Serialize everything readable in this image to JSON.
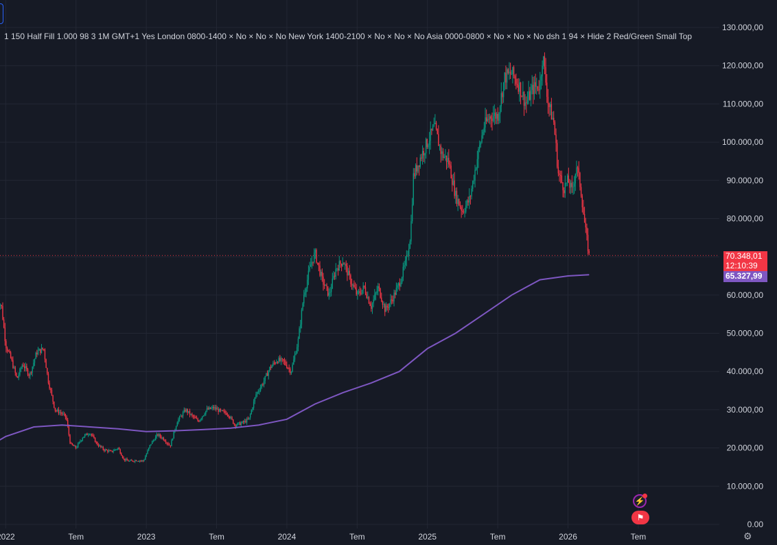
{
  "indicator_legend": "1 150 Half Fill 1.000 98 3 1M GMT+1 Yes London 0800-1400 × No × No × No New York 1400-2100 × No × No × No Asia 0000-0800 × No × No × No dsh 1 94 × Hide 2 Red/Green Small Top",
  "price_tags": {
    "current_price": "70.348,01",
    "countdown": "12:10:39",
    "ma_value": "65.327,99"
  },
  "icons": {
    "alert": "lightning-icon",
    "event": "us-flag-icon",
    "settings": "gear-icon"
  },
  "colors": {
    "background": "#161a25",
    "up_candle": "#089981",
    "down_candle": "#f23645",
    "ma_line": "#7e57c2",
    "grid": "#232734",
    "axis_text": "#d1d4dc"
  },
  "chart_data": {
    "type": "candlestick",
    "x_axis_labels": [
      "2022",
      "Tem",
      "2023",
      "Tem",
      "2024",
      "Tem",
      "2025",
      "Tem",
      "2026",
      "Tem"
    ],
    "y_axis_labels": [
      "130.000,00",
      "120.000,00",
      "110.000,00",
      "100.000,00",
      "90.000,00",
      "80.000,00",
      "70.000,00",
      "60.000,00",
      "50.000,00",
      "40.000,00",
      "30.000,00",
      "20.000,00",
      "10.000,00",
      "0.00"
    ],
    "ylim": [
      0,
      130000
    ],
    "xlim": [
      2021.93,
      2026.93
    ],
    "grid": true,
    "current_price": 70348.01,
    "price_path": [
      [
        2021.93,
        60000
      ],
      [
        2021.97,
        57000
      ],
      [
        2022.0,
        47000
      ],
      [
        2022.04,
        43000
      ],
      [
        2022.08,
        38000
      ],
      [
        2022.12,
        42000
      ],
      [
        2022.17,
        39000
      ],
      [
        2022.22,
        45000
      ],
      [
        2022.27,
        46000
      ],
      [
        2022.3,
        38000
      ],
      [
        2022.35,
        30000
      ],
      [
        2022.4,
        29000
      ],
      [
        2022.43,
        28000
      ],
      [
        2022.46,
        21000
      ],
      [
        2022.5,
        20000
      ],
      [
        2022.55,
        23000
      ],
      [
        2022.6,
        24000
      ],
      [
        2022.65,
        21000
      ],
      [
        2022.7,
        19500
      ],
      [
        2022.75,
        19000
      ],
      [
        2022.8,
        20000
      ],
      [
        2022.84,
        17000
      ],
      [
        2022.88,
        16500
      ],
      [
        2022.93,
        16800
      ],
      [
        2022.98,
        16600
      ],
      [
        2023.03,
        21000
      ],
      [
        2023.08,
        23500
      ],
      [
        2023.12,
        22500
      ],
      [
        2023.17,
        20500
      ],
      [
        2023.22,
        27000
      ],
      [
        2023.28,
        30000
      ],
      [
        2023.32,
        28500
      ],
      [
        2023.37,
        27000
      ],
      [
        2023.43,
        30000
      ],
      [
        2023.48,
        30500
      ],
      [
        2023.53,
        29500
      ],
      [
        2023.58,
        29000
      ],
      [
        2023.63,
        26000
      ],
      [
        2023.68,
        26500
      ],
      [
        2023.73,
        27500
      ],
      [
        2023.78,
        34000
      ],
      [
        2023.83,
        37000
      ],
      [
        2023.88,
        41000
      ],
      [
        2023.93,
        43000
      ],
      [
        2023.98,
        42500
      ],
      [
        2024.03,
        40000
      ],
      [
        2024.08,
        48000
      ],
      [
        2024.12,
        60000
      ],
      [
        2024.17,
        68000
      ],
      [
        2024.2,
        71000
      ],
      [
        2024.25,
        64000
      ],
      [
        2024.3,
        60000
      ],
      [
        2024.35,
        67000
      ],
      [
        2024.4,
        69000
      ],
      [
        2024.45,
        64000
      ],
      [
        2024.5,
        60000
      ],
      [
        2024.55,
        62000
      ],
      [
        2024.6,
        57000
      ],
      [
        2024.65,
        62000
      ],
      [
        2024.7,
        56000
      ],
      [
        2024.75,
        59000
      ],
      [
        2024.8,
        63000
      ],
      [
        2024.85,
        69000
      ],
      [
        2024.88,
        76000
      ],
      [
        2024.9,
        91000
      ],
      [
        2024.95,
        96000
      ],
      [
        2025.0,
        100000
      ],
      [
        2025.05,
        104000
      ],
      [
        2025.1,
        97000
      ],
      [
        2025.15,
        95000
      ],
      [
        2025.2,
        86000
      ],
      [
        2025.25,
        82000
      ],
      [
        2025.3,
        85000
      ],
      [
        2025.35,
        95000
      ],
      [
        2025.4,
        104000
      ],
      [
        2025.45,
        107000
      ],
      [
        2025.5,
        107000
      ],
      [
        2025.55,
        117000
      ],
      [
        2025.6,
        118000
      ],
      [
        2025.65,
        115000
      ],
      [
        2025.7,
        110000
      ],
      [
        2025.75,
        114000
      ],
      [
        2025.8,
        115000
      ],
      [
        2025.82,
        123000
      ],
      [
        2025.86,
        110000
      ],
      [
        2025.9,
        105000
      ],
      [
        2025.93,
        92000
      ],
      [
        2025.97,
        88000
      ],
      [
        2026.0,
        90000
      ],
      [
        2026.03,
        87000
      ],
      [
        2026.06,
        94000
      ],
      [
        2026.09,
        88000
      ],
      [
        2026.12,
        78000
      ],
      [
        2026.15,
        70348
      ]
    ],
    "ma_path": [
      [
        2021.93,
        21500
      ],
      [
        2022.0,
        23000
      ],
      [
        2022.2,
        25500
      ],
      [
        2022.4,
        26000
      ],
      [
        2022.6,
        25500
      ],
      [
        2022.8,
        25000
      ],
      [
        2023.0,
        24300
      ],
      [
        2023.2,
        24500
      ],
      [
        2023.4,
        24800
      ],
      [
        2023.6,
        25200
      ],
      [
        2023.8,
        26000
      ],
      [
        2024.0,
        27500
      ],
      [
        2024.2,
        31500
      ],
      [
        2024.4,
        34500
      ],
      [
        2024.6,
        37000
      ],
      [
        2024.8,
        40000
      ],
      [
        2025.0,
        46000
      ],
      [
        2025.2,
        50000
      ],
      [
        2025.4,
        55000
      ],
      [
        2025.6,
        60000
      ],
      [
        2025.8,
        64000
      ],
      [
        2026.0,
        65000
      ],
      [
        2026.15,
        65328
      ]
    ]
  }
}
